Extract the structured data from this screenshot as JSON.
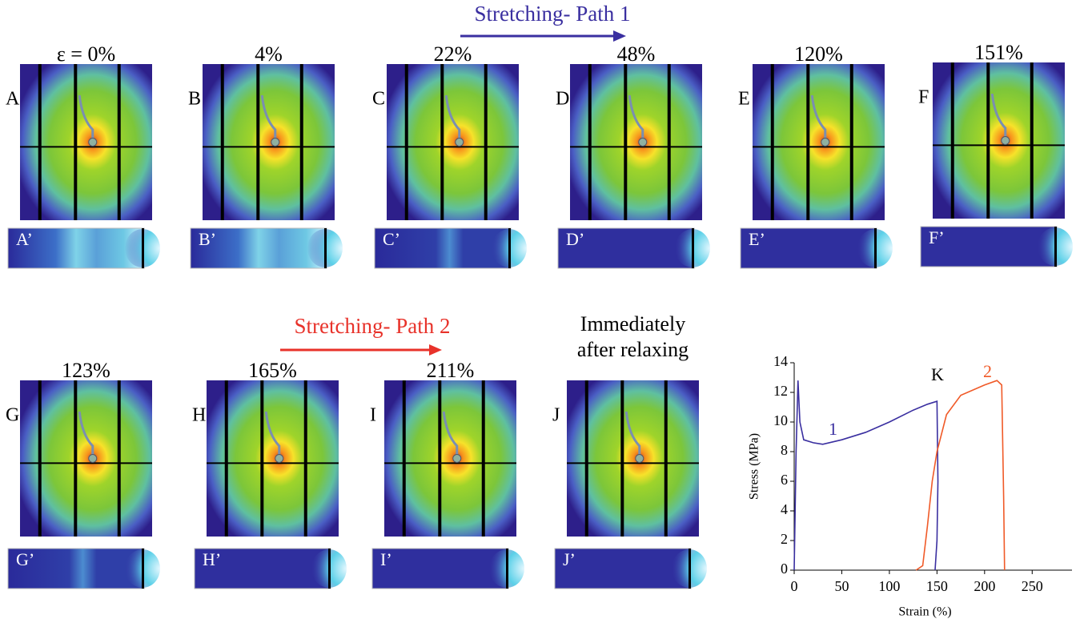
{
  "figure": {
    "path1_label": "Stretching- Path 1",
    "path2_label": "Stretching- Path 2",
    "panels": [
      {
        "letter": "A",
        "strain": "ε = 0%",
        "prime": "A’"
      },
      {
        "letter": "B",
        "strain": "4%",
        "prime": "B’"
      },
      {
        "letter": "C",
        "strain": "22%",
        "prime": "C’"
      },
      {
        "letter": "D",
        "strain": "48%",
        "prime": "D’"
      },
      {
        "letter": "E",
        "strain": "120%",
        "prime": "E’"
      },
      {
        "letter": "F",
        "strain": "151%",
        "prime": "F’"
      },
      {
        "letter": "G",
        "strain": "123%",
        "prime": "G’"
      },
      {
        "letter": "H",
        "strain": "165%",
        "prime": "H’"
      },
      {
        "letter": "I",
        "strain": "211%",
        "prime": "I’"
      },
      {
        "letter": "J",
        "strain": [
          "Immediately",
          "after relaxing"
        ],
        "prime": "J’"
      }
    ]
  },
  "chart_data": {
    "type": "line",
    "x_label": "Strain (%)",
    "y_label": "Stress (MPa)",
    "xlim": [
      0,
      275
    ],
    "xticks": [
      0,
      50,
      100,
      150,
      200,
      250
    ],
    "ylim": [
      0,
      14
    ],
    "yticks": [
      0,
      2,
      4,
      6,
      8,
      10,
      12,
      14
    ],
    "annotation": "K",
    "series": [
      {
        "name": "1",
        "color": "#3a2fa0",
        "x": [
          0,
          2,
          4,
          6,
          10,
          20,
          30,
          50,
          75,
          100,
          125,
          140,
          150,
          151,
          150,
          148
        ],
        "values": [
          0,
          8,
          12.8,
          10,
          8.8,
          8.6,
          8.5,
          8.8,
          9.3,
          10,
          10.8,
          11.2,
          11.4,
          6,
          2,
          0
        ]
      },
      {
        "name": "2",
        "color": "#f05a28",
        "x": [
          128,
          135,
          140,
          145,
          150,
          160,
          175,
          200,
          213,
          218,
          220,
          221
        ],
        "values": [
          0,
          0.3,
          3,
          6,
          8,
          10.5,
          11.8,
          12.5,
          12.8,
          12.5,
          5,
          0
        ]
      }
    ]
  }
}
